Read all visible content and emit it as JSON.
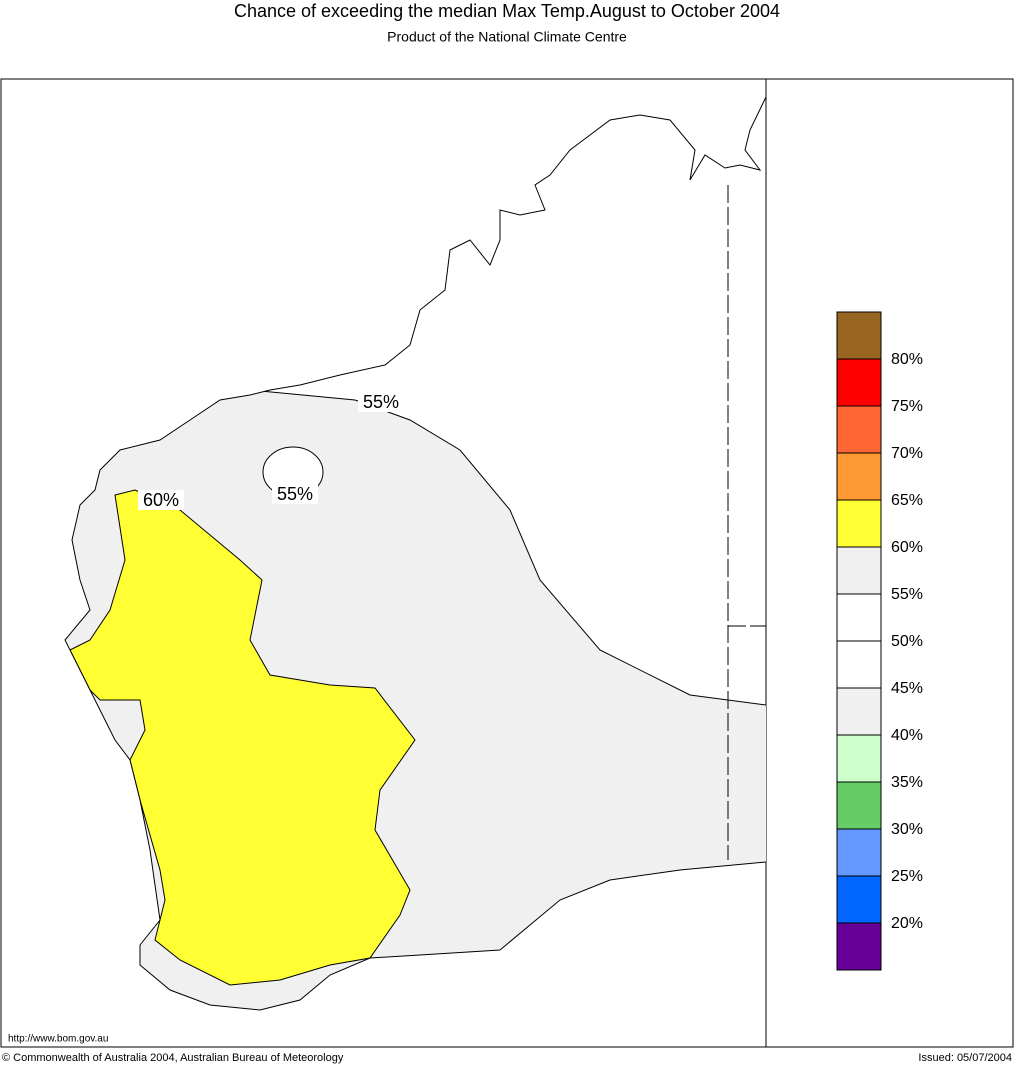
{
  "header": {
    "title": "Chance of exceeding the median Max Temp.August to October 2004",
    "subtitle": "Product of the National Climate Centre"
  },
  "map": {
    "contour_labels": [
      "55%",
      "55%",
      "60%"
    ]
  },
  "legend": {
    "colors": [
      "#996622",
      "#ff0000",
      "#ff6633",
      "#ff9933",
      "#ffff33",
      "#f0f0f0",
      "#ffffff",
      "#ffffff",
      "#f0f0f0",
      "#ccffcc",
      "#66cc66",
      "#6699ff",
      "#0066ff",
      "#660099"
    ],
    "labels": [
      "80%",
      "75%",
      "70%",
      "65%",
      "60%",
      "55%",
      "50%",
      "45%",
      "40%",
      "35%",
      "30%",
      "25%",
      "20%"
    ]
  },
  "footer": {
    "url": "http://www.bom.gov.au",
    "copyright": "© Commonwealth of Australia 2004, Australian Bureau of Meteorology",
    "issued": "Issued: 05/07/2004"
  }
}
